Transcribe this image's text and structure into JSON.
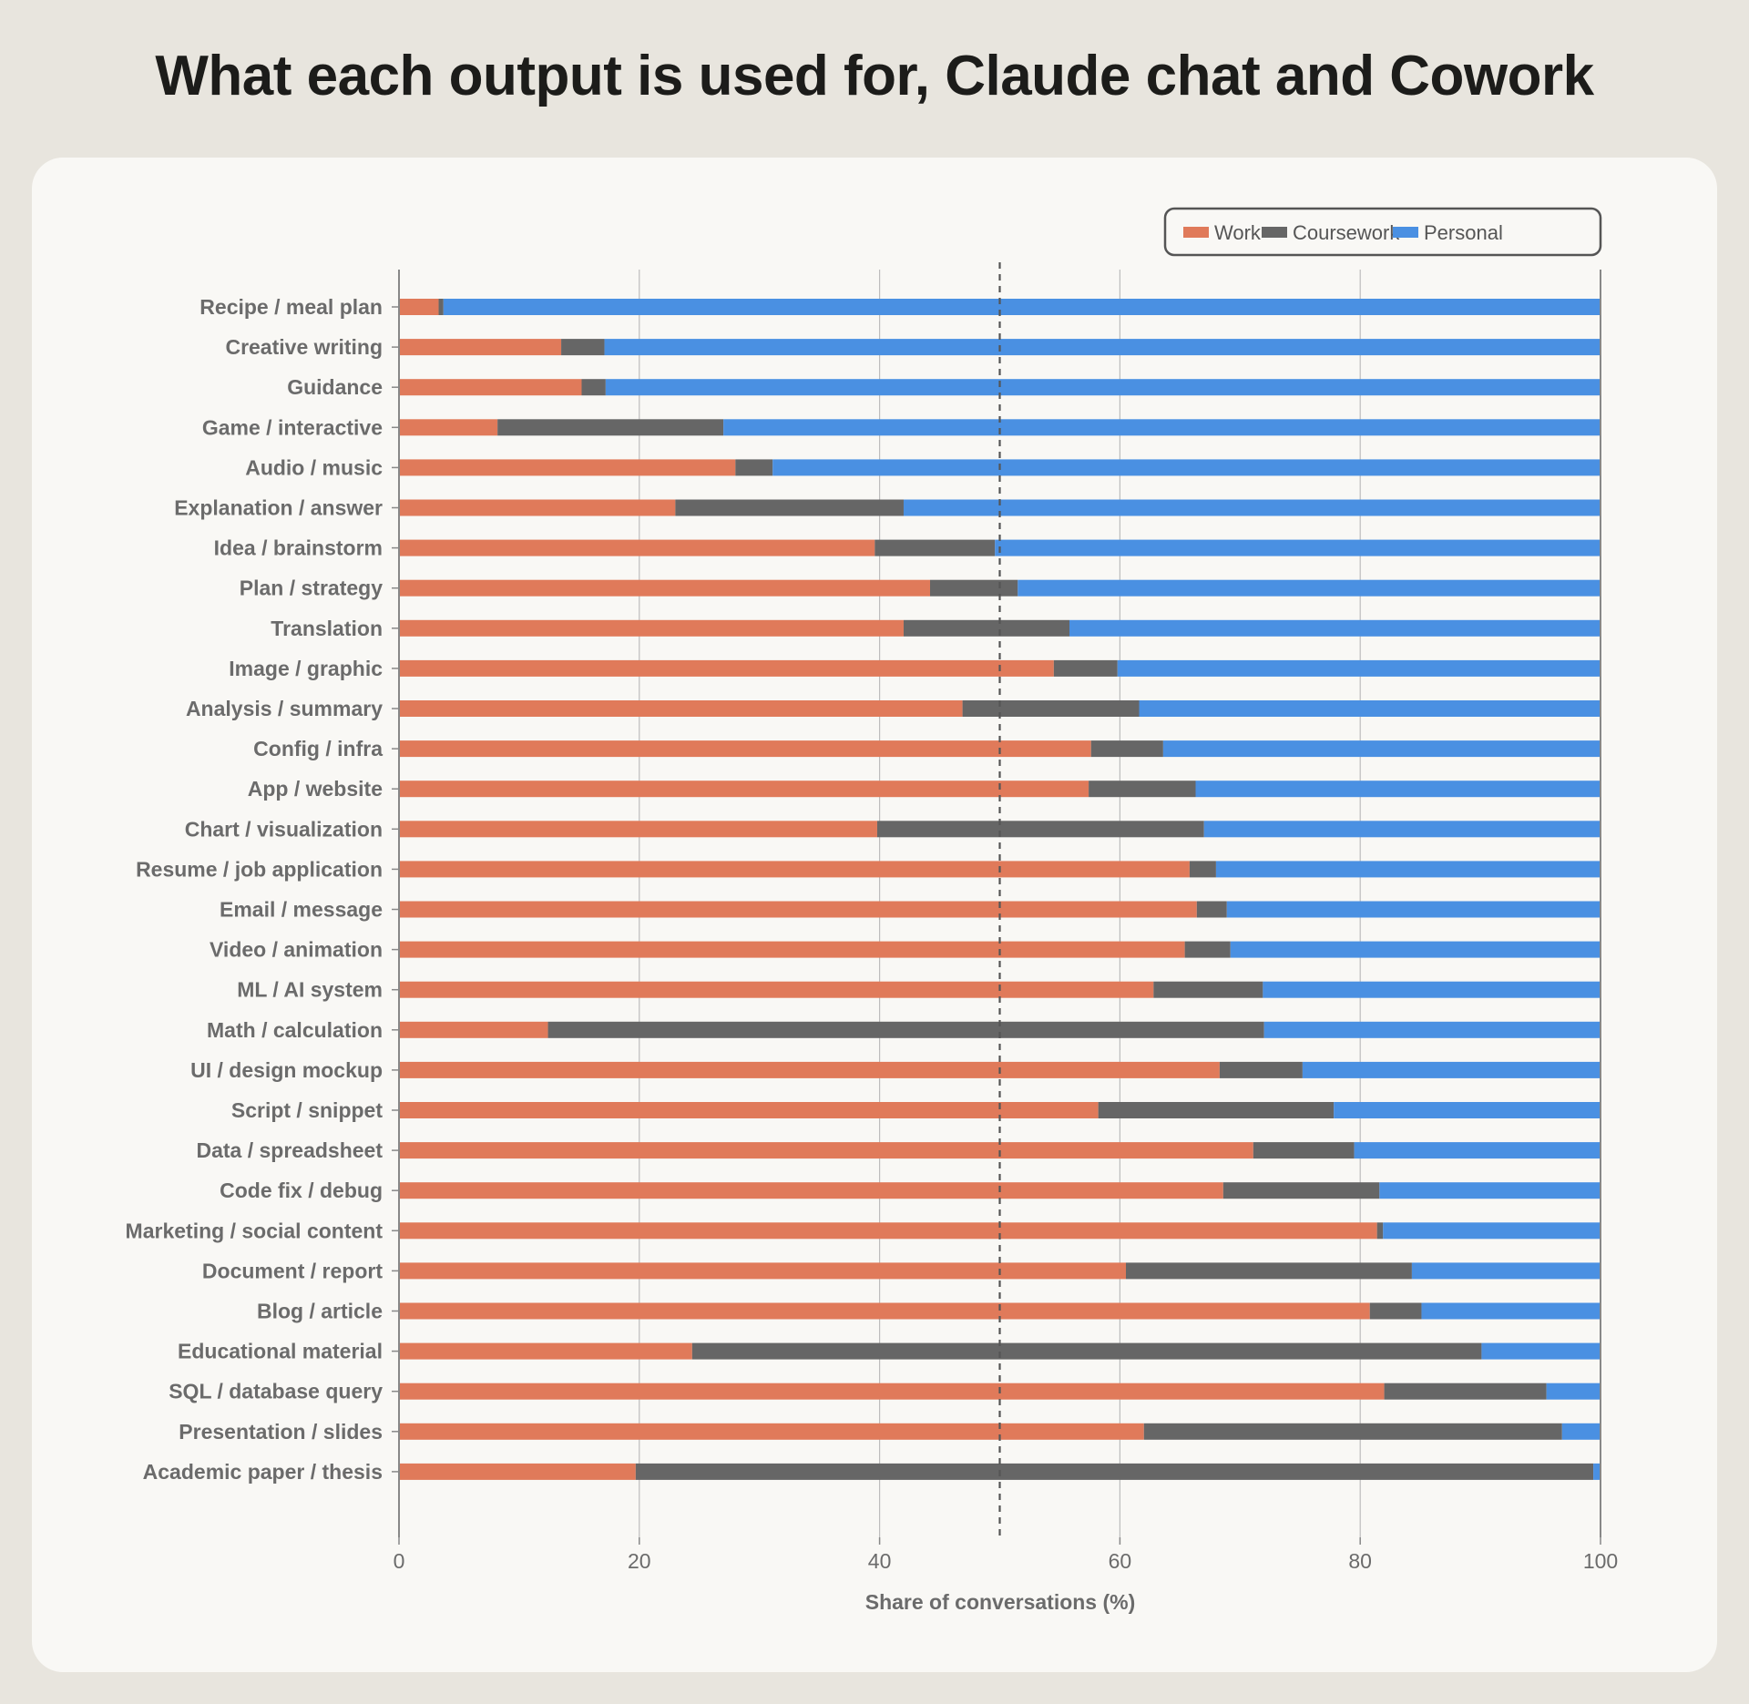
{
  "title": "What each output is used for, Claude chat and Cowork",
  "colors": {
    "Work": "#e07a5a",
    "Coursework": "#666666",
    "Personal": "#4a90e2",
    "grid": "#bdbdbd",
    "axis": "#888888",
    "reference": "#555555"
  },
  "chart_data": {
    "type": "bar",
    "orientation": "horizontal",
    "stacked": true,
    "title": "What each output is used for, Claude chat and Cowork",
    "xlabel": "Share of conversations (%)",
    "ylabel": "",
    "xlim": [
      0,
      100
    ],
    "xticks": [
      0,
      20,
      40,
      60,
      80,
      100
    ],
    "reference_line": 50,
    "grid": "vertical",
    "legend_position": "top-right",
    "categories": [
      "Recipe / meal plan",
      "Creative writing",
      "Guidance",
      "Game / interactive",
      "Audio / music",
      "Explanation / answer",
      "Idea / brainstorm",
      "Plan / strategy",
      "Translation",
      "Image / graphic",
      "Analysis / summary",
      "Config / infra",
      "App / website",
      "Chart / visualization",
      "Resume / job application",
      "Email / message",
      "Video / animation",
      "ML / AI system",
      "Math / calculation",
      "UI / design mockup",
      "Script / snippet",
      "Data / spreadsheet",
      "Code fix / debug",
      "Marketing / social content",
      "Document / report",
      "Blog / article",
      "Educational material",
      "SQL / database query",
      "Presentation / slides",
      "Academic paper / thesis"
    ],
    "series": [
      {
        "name": "Work",
        "values": [
          3.3,
          13.5,
          15.2,
          8.2,
          28.0,
          23.0,
          39.6,
          44.2,
          42.0,
          54.5,
          46.9,
          57.6,
          57.4,
          39.8,
          65.8,
          66.4,
          65.4,
          62.8,
          12.4,
          68.3,
          58.2,
          71.1,
          68.6,
          81.4,
          60.5,
          80.8,
          24.4,
          82.0,
          62.0,
          19.7
        ],
        "color": "#e07a5a"
      },
      {
        "name": "Coursework",
        "values": [
          0.4,
          3.6,
          2.0,
          18.8,
          3.1,
          19.0,
          10.0,
          7.3,
          13.8,
          5.3,
          14.7,
          6.0,
          8.9,
          27.2,
          2.2,
          2.5,
          3.8,
          9.1,
          59.6,
          6.9,
          19.6,
          8.4,
          13.0,
          0.5,
          23.8,
          4.3,
          65.7,
          13.5,
          34.8,
          79.7
        ],
        "color": "#666666"
      },
      {
        "name": "Personal",
        "values": [
          96.3,
          82.9,
          82.8,
          73.0,
          68.9,
          58.0,
          50.4,
          48.5,
          44.2,
          40.2,
          38.4,
          36.4,
          33.7,
          33.0,
          32.0,
          31.1,
          30.8,
          28.1,
          28.0,
          24.8,
          22.2,
          20.5,
          18.4,
          18.1,
          15.7,
          14.9,
          9.9,
          4.5,
          3.2,
          0.6
        ],
        "color": "#4a90e2"
      }
    ]
  }
}
